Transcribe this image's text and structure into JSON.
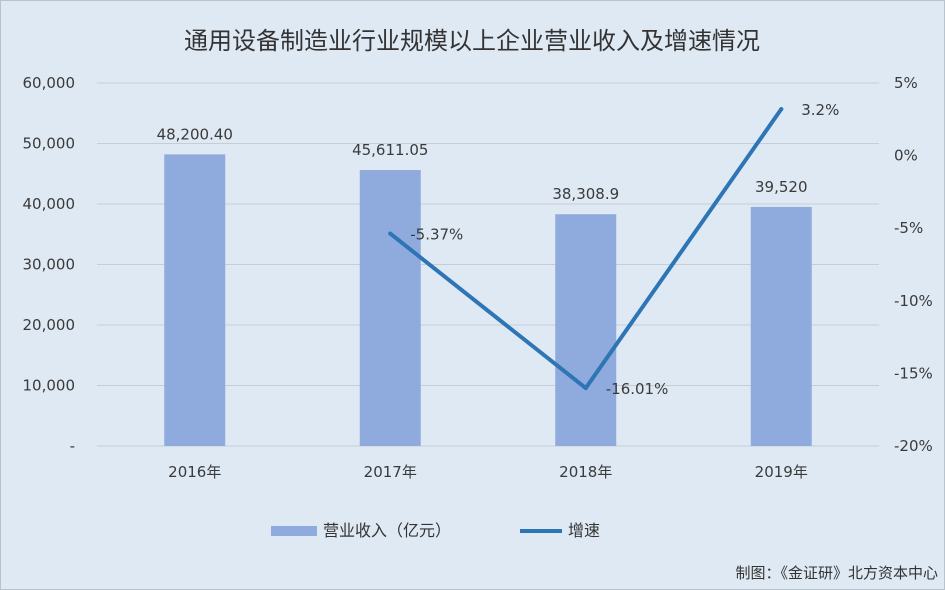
{
  "chart_data": {
    "type": "bar",
    "title": "通用设备制造业行业规模以上企业营业收入及增速情况",
    "categories": [
      "2016年",
      "2017年",
      "2018年",
      "2019年"
    ],
    "series": [
      {
        "name": "营业收入（亿元）",
        "type": "bar",
        "axis": "left",
        "values": [
          48200.4,
          45611.05,
          38308.9,
          39520
        ],
        "labels": [
          "48,200.40",
          "45,611.05",
          "38,308.9",
          "39,520"
        ]
      },
      {
        "name": "增速",
        "type": "line",
        "axis": "right",
        "values": [
          null,
          -5.37,
          -16.01,
          3.2
        ],
        "labels": [
          "",
          "-5.37%",
          "-16.01%",
          "3.2%"
        ]
      }
    ],
    "y_left": {
      "range": [
        0,
        60000
      ],
      "ticks": [
        0,
        10000,
        20000,
        30000,
        40000,
        50000,
        60000
      ],
      "tick_labels": [
        "-",
        "10,000",
        "20,000",
        "30,000",
        "40,000",
        "50,000",
        "60,000"
      ]
    },
    "y_right": {
      "range": [
        -20,
        5
      ],
      "ticks": [
        5,
        0,
        -5,
        -10,
        -15,
        -20
      ],
      "tick_labels": [
        "5%",
        "0%",
        "-5%",
        "-10%",
        "-15%",
        "-20%"
      ]
    },
    "grid": true,
    "legend_position": "bottom",
    "colors": {
      "bar": "#8faadc",
      "line": "#2e75b6",
      "grid": "#c4cdd8",
      "background": "#dfe9f4"
    }
  },
  "credit": "制图：《金证研》北方资本中心"
}
